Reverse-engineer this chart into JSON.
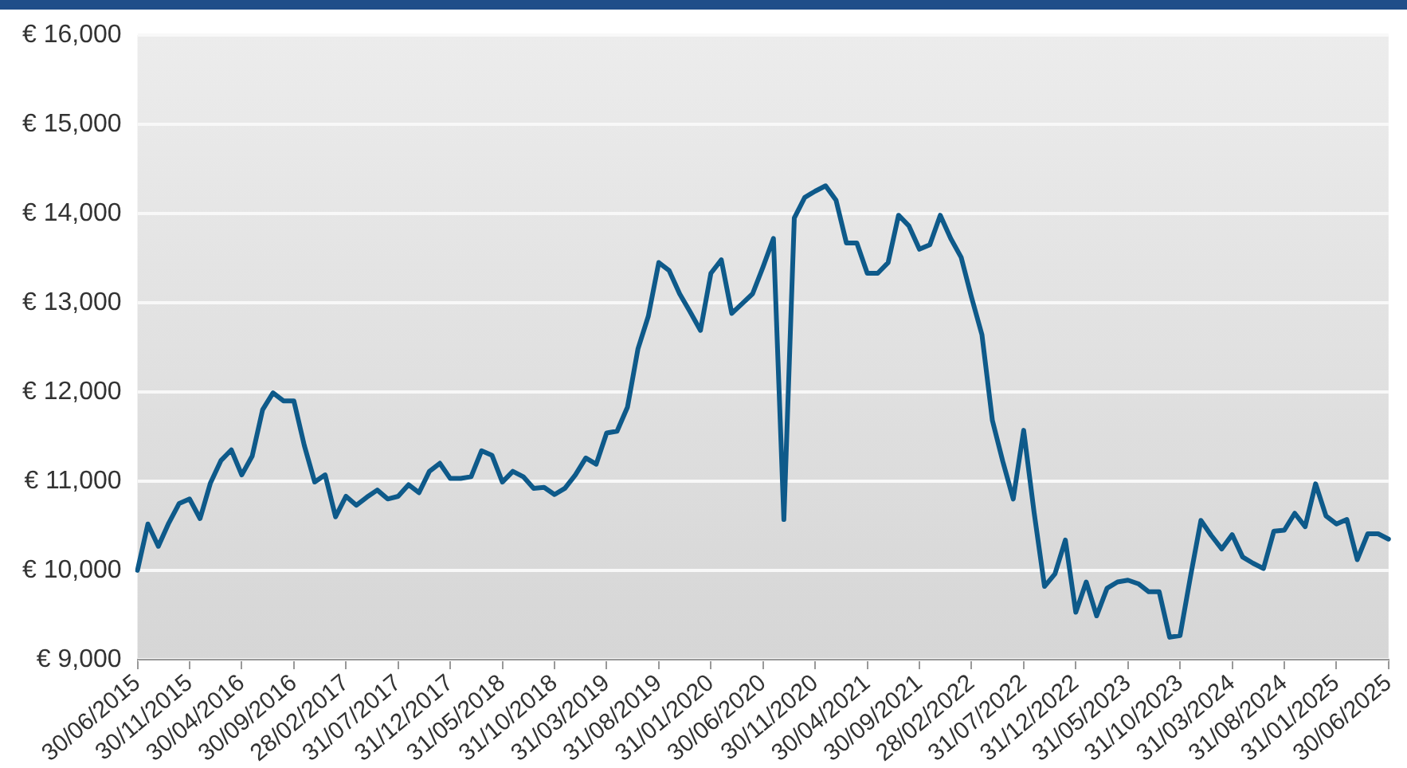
{
  "chart_data": {
    "type": "line",
    "categories": [
      "30/06/2015",
      null,
      null,
      null,
      null,
      "30/11/2015",
      null,
      null,
      null,
      null,
      "30/04/2016",
      null,
      null,
      null,
      null,
      "30/09/2016",
      null,
      null,
      null,
      null,
      "28/02/2017",
      null,
      null,
      null,
      null,
      "31/07/2017",
      null,
      null,
      null,
      null,
      "31/12/2017",
      null,
      null,
      null,
      null,
      "31/05/2018",
      null,
      null,
      null,
      null,
      "31/10/2018",
      null,
      null,
      null,
      null,
      "31/03/2019",
      null,
      null,
      null,
      null,
      "31/08/2019",
      null,
      null,
      null,
      null,
      "31/01/2020",
      null,
      null,
      null,
      null,
      "30/06/2020",
      null,
      null,
      null,
      null,
      "30/11/2020",
      null,
      null,
      null,
      null,
      "30/04/2021",
      null,
      null,
      null,
      null,
      "30/09/2021",
      null,
      null,
      null,
      null,
      "28/02/2022",
      null,
      null,
      null,
      null,
      "31/07/2022",
      null,
      null,
      null,
      null,
      "31/12/2022",
      null,
      null,
      null,
      null,
      "31/05/2023",
      null,
      null,
      null,
      null,
      "31/10/2023",
      null,
      null,
      null,
      null,
      "31/03/2024",
      null,
      null,
      null,
      null,
      "31/08/2024",
      null,
      null,
      null,
      null,
      "31/01/2025",
      null,
      null,
      null,
      null,
      "30/06/2025"
    ],
    "series": [
      {
        "color": "#0e5a8a",
        "values": [
          10000,
          10520,
          10270,
          10530,
          10750,
          10800,
          10580,
          10980,
          11230,
          11350,
          11070,
          11280,
          11800,
          11990,
          11900,
          11900,
          11400,
          10990,
          11070,
          10600,
          10830,
          10730,
          10820,
          10900,
          10800,
          10830,
          10960,
          10870,
          11110,
          11200,
          11030,
          11030,
          11050,
          11340,
          11290,
          10990,
          11110,
          11050,
          10920,
          10930,
          10850,
          10920,
          11070,
          11260,
          11190,
          11540,
          11560,
          11830,
          12480,
          12850,
          13450,
          13360,
          13100,
          12900,
          12690,
          13330,
          13480,
          12880,
          12990,
          13100,
          13400,
          13720,
          10570,
          13950,
          14180,
          14250,
          14310,
          14150,
          13670,
          13670,
          13330,
          13330,
          13450,
          13980,
          13860,
          13600,
          13650,
          13980,
          13720,
          13510,
          13060,
          12640,
          11680,
          11220,
          10800,
          11570,
          10650,
          9820,
          9960,
          10340,
          9530,
          9870,
          9490,
          9800,
          9870,
          9890,
          9850,
          9760,
          9760,
          9250,
          9270,
          9930,
          10560,
          10390,
          10240,
          10400,
          10150,
          10080,
          10020,
          10440,
          10450,
          10640,
          10490,
          10970,
          10610,
          10520,
          10570,
          10120,
          10410,
          10410,
          10350
        ]
      }
    ],
    "ylim": [
      9000,
      16000
    ],
    "yticks": [
      {
        "value": 9000,
        "label": "€ 9,000"
      },
      {
        "value": 10000,
        "label": "€ 10,000"
      },
      {
        "value": 11000,
        "label": "€ 11,000"
      },
      {
        "value": 12000,
        "label": "€ 12,000"
      },
      {
        "value": 13000,
        "label": "€ 13,000"
      },
      {
        "value": 14000,
        "label": "€ 14,000"
      },
      {
        "value": 15000,
        "label": "€ 15,000"
      },
      {
        "value": 16000,
        "label": "€ 16,000"
      }
    ],
    "grid": "y",
    "legend": false,
    "marker": "none",
    "line_style": "solid"
  }
}
